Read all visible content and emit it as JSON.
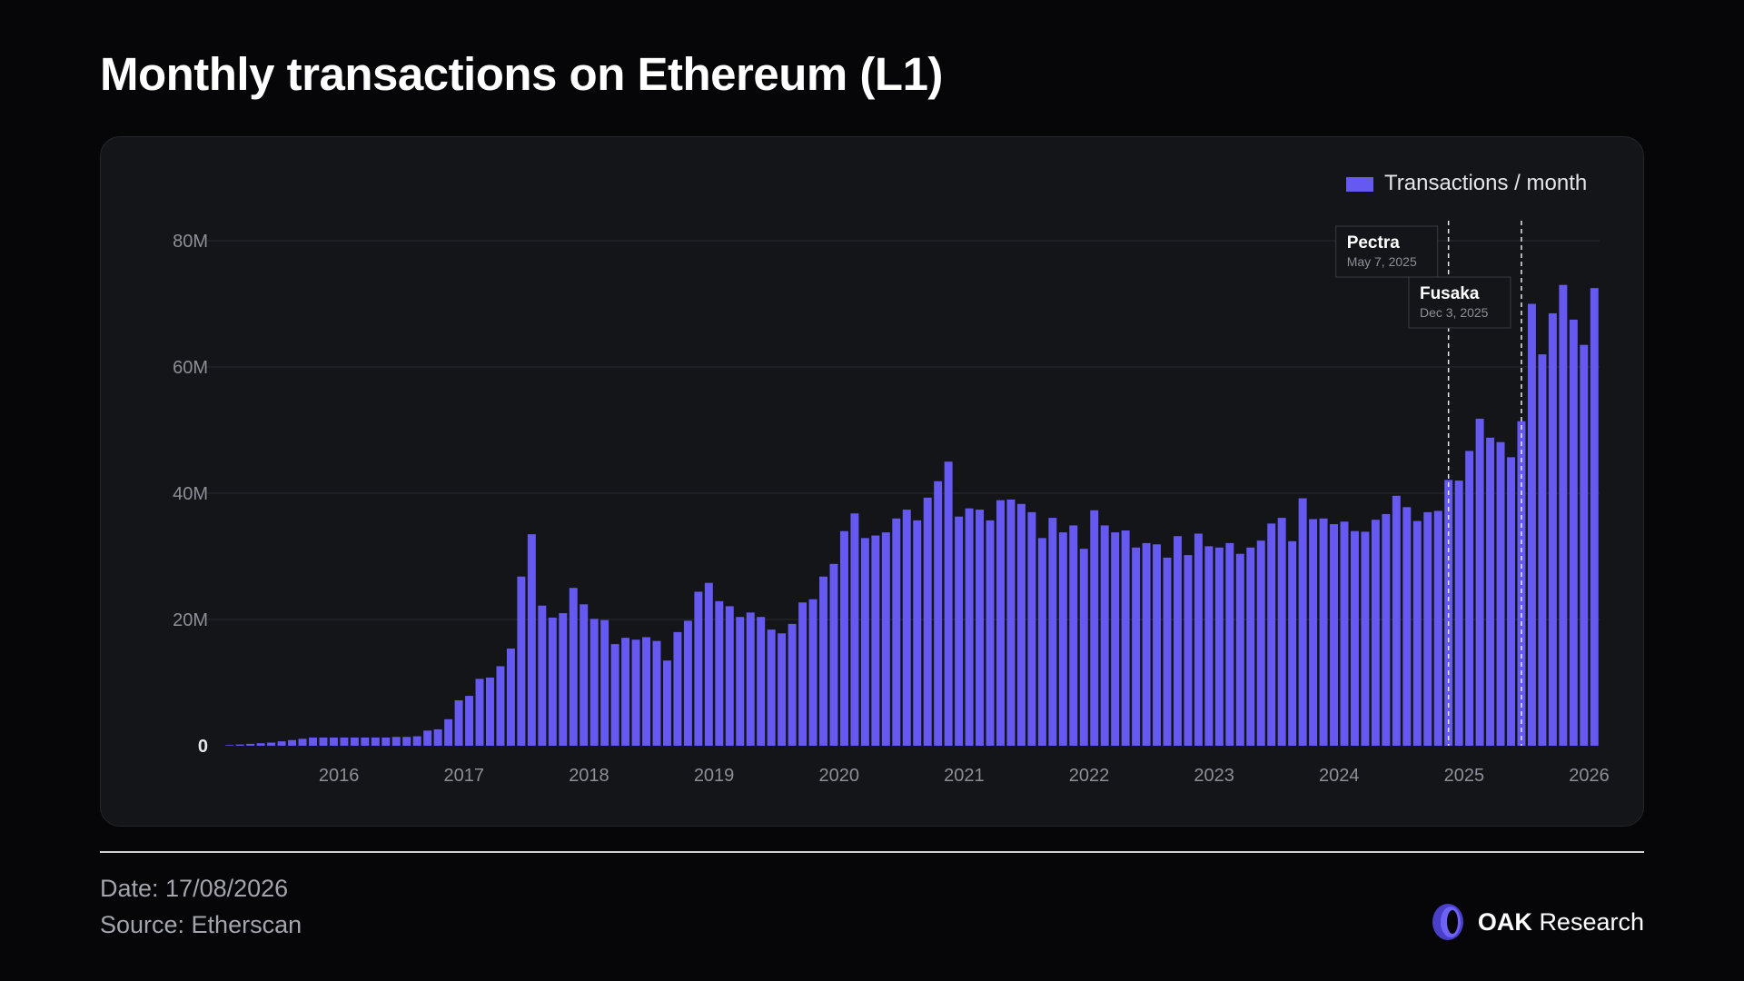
{
  "page": {
    "title": "Monthly transactions on Ethereum (L1)",
    "date_text": "Date: 17/08/2026",
    "source_text": "Source: Etherscan",
    "brand_bold": "OAK",
    "brand_rest": "Research"
  },
  "colors": {
    "bar": "#6559f2",
    "background": "#060608",
    "card": "#141519",
    "grid": "#2a2c33",
    "axis_text": "#8d8f98"
  },
  "chart_data": {
    "type": "bar",
    "series_name": "Transactions / month",
    "x_start": "2015-08",
    "x_tick_labels": [
      "2016",
      "2017",
      "2018",
      "2019",
      "2020",
      "2021",
      "2022",
      "2023",
      "2024",
      "2025",
      "2026"
    ],
    "y_tick_labels": [
      "0",
      "20M",
      "40M",
      "60M",
      "80M"
    ],
    "y_ticks": [
      0,
      20000000,
      40000000,
      60000000,
      80000000
    ],
    "ylim": [
      0,
      80000000
    ],
    "grid": true,
    "legend": "top-right",
    "months": [
      "2015-08",
      "2015-09",
      "2015-10",
      "2015-11",
      "2015-12",
      "2016-01",
      "2016-02",
      "2016-03",
      "2016-04",
      "2016-05",
      "2016-06",
      "2016-07",
      "2016-08",
      "2016-09",
      "2016-10",
      "2016-11",
      "2016-12",
      "2017-01",
      "2017-02",
      "2017-03",
      "2017-04",
      "2017-05",
      "2017-06",
      "2017-07",
      "2017-08",
      "2017-09",
      "2017-10",
      "2017-11",
      "2017-12",
      "2018-01",
      "2018-02",
      "2018-03",
      "2018-04",
      "2018-05",
      "2018-06",
      "2018-07",
      "2018-08",
      "2018-09",
      "2018-10",
      "2018-11",
      "2018-12",
      "2019-01",
      "2019-02",
      "2019-03",
      "2019-04",
      "2019-05",
      "2019-06",
      "2019-07",
      "2019-08",
      "2019-09",
      "2019-10",
      "2019-11",
      "2019-12",
      "2020-01",
      "2020-02",
      "2020-03",
      "2020-04",
      "2020-05",
      "2020-06",
      "2020-07",
      "2020-08",
      "2020-09",
      "2020-10",
      "2020-11",
      "2020-12",
      "2021-01",
      "2021-02",
      "2021-03",
      "2021-04",
      "2021-05",
      "2021-06",
      "2021-07",
      "2021-08",
      "2021-09",
      "2021-10",
      "2021-11",
      "2021-12",
      "2022-01",
      "2022-02",
      "2022-03",
      "2022-04",
      "2022-05",
      "2022-06",
      "2022-07",
      "2022-08",
      "2022-09",
      "2022-10",
      "2022-11",
      "2022-12",
      "2023-01",
      "2023-02",
      "2023-03",
      "2023-04",
      "2023-05",
      "2023-06",
      "2023-07",
      "2023-08",
      "2023-09",
      "2023-10",
      "2023-11",
      "2023-12",
      "2024-01",
      "2024-02",
      "2024-03",
      "2024-04",
      "2024-05",
      "2024-06",
      "2024-07",
      "2024-08",
      "2024-09",
      "2024-10",
      "2024-11",
      "2024-12",
      "2025-01",
      "2025-02",
      "2025-03",
      "2025-04",
      "2025-05",
      "2025-06",
      "2025-07",
      "2025-08",
      "2025-09",
      "2025-10",
      "2025-11",
      "2025-12",
      "2026-01",
      "2026-02",
      "2026-03",
      "2026-04",
      "2026-05",
      "2026-06",
      "2026-07"
    ],
    "values": [
      100000,
      200000,
      300000,
      400000,
      500000,
      700000,
      900000,
      1100000,
      1300000,
      1300000,
      1300000,
      1300000,
      1300000,
      1300000,
      1300000,
      1300000,
      1400000,
      1400000,
      1500000,
      2400000,
      2600000,
      4200000,
      7200000,
      7900000,
      10600000,
      10800000,
      12600000,
      15400000,
      26800000,
      33500000,
      22200000,
      20300000,
      21000000,
      25000000,
      22400000,
      20100000,
      19900000,
      16100000,
      17100000,
      16800000,
      17200000,
      16600000,
      13500000,
      18000000,
      19800000,
      24400000,
      25800000,
      22900000,
      22100000,
      20400000,
      21100000,
      20400000,
      18400000,
      17800000,
      19300000,
      22700000,
      23200000,
      26800000,
      28800000,
      34000000,
      36800000,
      32900000,
      33300000,
      33800000,
      36000000,
      37400000,
      35700000,
      39300000,
      41900000,
      45000000,
      36300000,
      37600000,
      37400000,
      35700000,
      38900000,
      39000000,
      38300000,
      37000000,
      32900000,
      36100000,
      33800000,
      34900000,
      31200000,
      37300000,
      34900000,
      33800000,
      34100000,
      31400000,
      32100000,
      31900000,
      29800000,
      33200000,
      30200000,
      33600000,
      31600000,
      31400000,
      32100000,
      30400000,
      31400000,
      32500000,
      35200000,
      36100000,
      32400000,
      39200000,
      35900000,
      36000000,
      35100000,
      35500000,
      34000000,
      33900000,
      35800000,
      36700000,
      39600000,
      37800000,
      35600000,
      37000000,
      37200000,
      42100000,
      42000000,
      46700000,
      51800000,
      48800000,
      48100000,
      45700000,
      51400000,
      70000000,
      62000000,
      68500000,
      73000000,
      67500000,
      63500000,
      72500000
    ],
    "annotations": [
      {
        "label": "Pectra",
        "date_text": "May 7, 2025",
        "at": "2025-05"
      },
      {
        "label": "Fusaka",
        "date_text": "Dec 3, 2025",
        "at": "2025-12"
      }
    ]
  }
}
